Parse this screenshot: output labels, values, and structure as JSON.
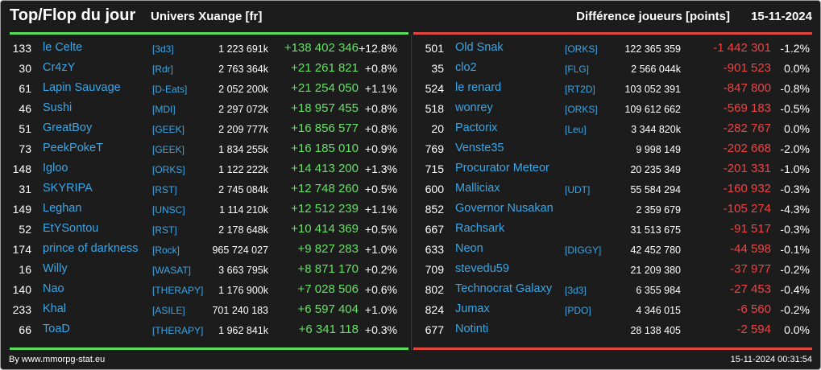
{
  "header": {
    "title": "Top/Flop du jour",
    "universe": "Univers Xuange [fr]",
    "metric": "Différence joueurs [points]",
    "date": "15-11-2024"
  },
  "colors": {
    "positive": "#66e066",
    "negative": "#ee4444",
    "link": "#3aa6e6",
    "top_bar": "#5cdc5c",
    "flop_bar": "#e0463c"
  },
  "top": [
    {
      "rank": "133",
      "name": "le Celte",
      "tag": "[3d3]",
      "points": "1 223 691k",
      "diff": "+138 402 346",
      "pct": "+12.8%"
    },
    {
      "rank": "30",
      "name": "Cr4zY",
      "tag": "[Rdr]",
      "points": "2 763 364k",
      "diff": "+21 261 821",
      "pct": "+0.8%"
    },
    {
      "rank": "61",
      "name": "Lapin Sauvage",
      "tag": "[D-Eats]",
      "points": "2 052 200k",
      "diff": "+21 254 050",
      "pct": "+1.1%"
    },
    {
      "rank": "46",
      "name": "Sushi",
      "tag": "[MDI]",
      "points": "2 297 072k",
      "diff": "+18 957 455",
      "pct": "+0.8%"
    },
    {
      "rank": "51",
      "name": "GreatBoy",
      "tag": "[GEEK]",
      "points": "2 209 777k",
      "diff": "+16 856 577",
      "pct": "+0.8%"
    },
    {
      "rank": "73",
      "name": "PeekPokeT",
      "tag": "[GEEK]",
      "points": "1 834 255k",
      "diff": "+16 185 010",
      "pct": "+0.9%"
    },
    {
      "rank": "148",
      "name": "Igloo",
      "tag": "[ORKS]",
      "points": "1 122 222k",
      "diff": "+14 413 200",
      "pct": "+1.3%"
    },
    {
      "rank": "31",
      "name": "SKYRIPA",
      "tag": "[RST]",
      "points": "2 745 084k",
      "diff": "+12 748 260",
      "pct": "+0.5%"
    },
    {
      "rank": "149",
      "name": "Leghan",
      "tag": "[UNSC]",
      "points": "1 114 210k",
      "diff": "+12 512 239",
      "pct": "+1.1%"
    },
    {
      "rank": "52",
      "name": "EtYSontou",
      "tag": "[RST]",
      "points": "2 178 648k",
      "diff": "+10 414 369",
      "pct": "+0.5%"
    },
    {
      "rank": "174",
      "name": "prince of darkness",
      "tag": "[Rock]",
      "points": "965 724 027",
      "diff": "+9 827 283",
      "pct": "+1.0%"
    },
    {
      "rank": "16",
      "name": "Willy",
      "tag": "[WASAT]",
      "points": "3 663 795k",
      "diff": "+8 871 170",
      "pct": "+0.2%"
    },
    {
      "rank": "140",
      "name": "Nao",
      "tag": "[THERAPY]",
      "points": "1 176 900k",
      "diff": "+7 028 506",
      "pct": "+0.6%"
    },
    {
      "rank": "233",
      "name": "Khal",
      "tag": "[ASILE]",
      "points": "701 240 183",
      "diff": "+6 597 404",
      "pct": "+1.0%"
    },
    {
      "rank": "66",
      "name": "ToaD",
      "tag": "[THERAPY]",
      "points": "1 962 841k",
      "diff": "+6 341 118",
      "pct": "+0.3%"
    }
  ],
  "flop": [
    {
      "rank": "501",
      "name": "Old Snak",
      "tag": "[ORKS]",
      "points": "122 365 359",
      "diff": "-1 442 301",
      "pct": "-1.2%"
    },
    {
      "rank": "35",
      "name": "clo2",
      "tag": "[FLG]",
      "points": "2 566 044k",
      "diff": "-901 523",
      "pct": "0.0%"
    },
    {
      "rank": "524",
      "name": "le renard",
      "tag": "[RT2D]",
      "points": "103 052 391",
      "diff": "-847 800",
      "pct": "-0.8%"
    },
    {
      "rank": "518",
      "name": "wonrey",
      "tag": "[ORKS]",
      "points": "109 612 662",
      "diff": "-569 183",
      "pct": "-0.5%"
    },
    {
      "rank": "20",
      "name": "Pactorix",
      "tag": "[Leu]",
      "points": "3 344 820k",
      "diff": "-282 767",
      "pct": "0.0%"
    },
    {
      "rank": "769",
      "name": "Venste35",
      "tag": "",
      "points": "9 998 149",
      "diff": "-202 668",
      "pct": "-2.0%"
    },
    {
      "rank": "715",
      "name": "Procurator Meteor",
      "tag": "",
      "points": "20 235 349",
      "diff": "-201 331",
      "pct": "-1.0%"
    },
    {
      "rank": "600",
      "name": "Malliciax",
      "tag": "[UDT]",
      "points": "55 584 294",
      "diff": "-160 932",
      "pct": "-0.3%"
    },
    {
      "rank": "852",
      "name": "Governor Nusakan",
      "tag": "",
      "points": "2 359 679",
      "diff": "-105 274",
      "pct": "-4.3%"
    },
    {
      "rank": "667",
      "name": "Rachsark",
      "tag": "",
      "points": "31 513 675",
      "diff": "-91 517",
      "pct": "-0.3%"
    },
    {
      "rank": "633",
      "name": "Neon",
      "tag": "[DIGGY]",
      "points": "42 452 780",
      "diff": "-44 598",
      "pct": "-0.1%"
    },
    {
      "rank": "709",
      "name": "stevedu59",
      "tag": "",
      "points": "21 209 380",
      "diff": "-37 977",
      "pct": "-0.2%"
    },
    {
      "rank": "802",
      "name": "Technocrat Galaxy",
      "tag": "[3d3]",
      "points": "6 355 984",
      "diff": "-27 453",
      "pct": "-0.4%"
    },
    {
      "rank": "824",
      "name": "Jumax",
      "tag": "[PDO]",
      "points": "4 346 015",
      "diff": "-6 560",
      "pct": "-0.2%"
    },
    {
      "rank": "677",
      "name": "Notinti",
      "tag": "",
      "points": "28 138 405",
      "diff": "-2 594",
      "pct": "0.0%"
    }
  ],
  "footer": {
    "credit": "By www.mmorpg-stat.eu",
    "timestamp": "15-11-2024 00:31:54"
  }
}
